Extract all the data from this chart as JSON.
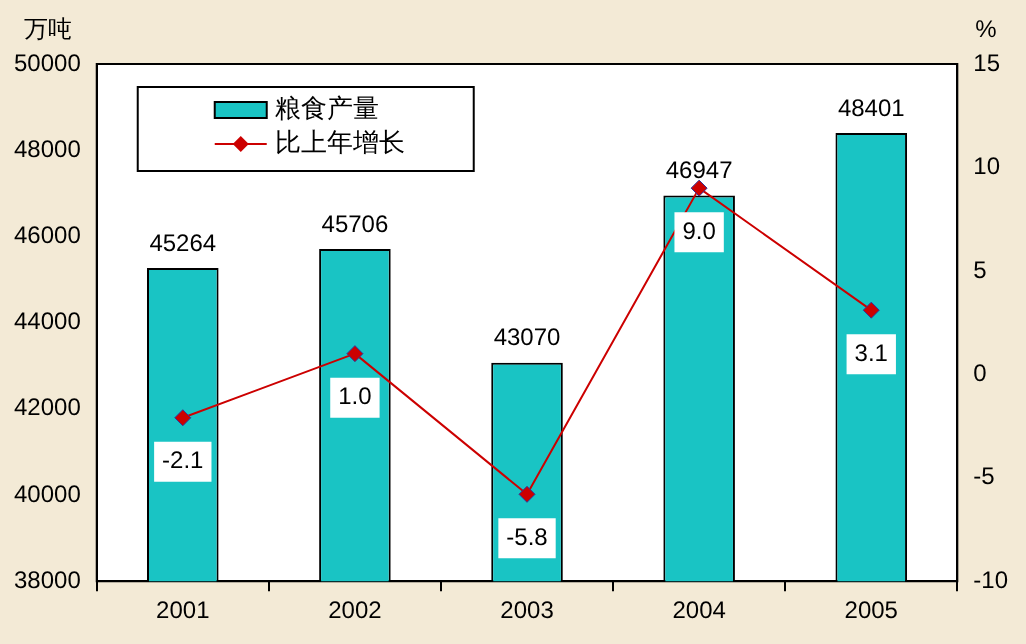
{
  "chart_data": {
    "type": "bar",
    "ylabel": "万吨",
    "y2label": "%",
    "categories": [
      "2001",
      "2002",
      "2003",
      "2004",
      "2005"
    ],
    "series": [
      {
        "name": "粮食产量",
        "color": "#19c4c4",
        "values": [
          45264,
          45706,
          43070,
          46947,
          48401
        ]
      },
      {
        "name": "比上年增长",
        "type": "line",
        "axis": "y2",
        "color": "#cc0000",
        "marker": "diamond",
        "values": [
          -2.1,
          1.0,
          -5.8,
          9.0,
          3.1
        ],
        "value_labels": [
          "-2.1",
          "1.0",
          "-5.8",
          "9.0",
          "3.1"
        ]
      }
    ],
    "ylim": [
      38000,
      50000
    ],
    "yticks": [
      38000,
      40000,
      42000,
      44000,
      46000,
      48000,
      50000
    ],
    "y2lim": [
      -10,
      15
    ],
    "y2ticks": [
      -10,
      -5,
      0,
      5,
      10,
      15
    ],
    "data_labels": true,
    "legend": "top left",
    "grid": false
  }
}
